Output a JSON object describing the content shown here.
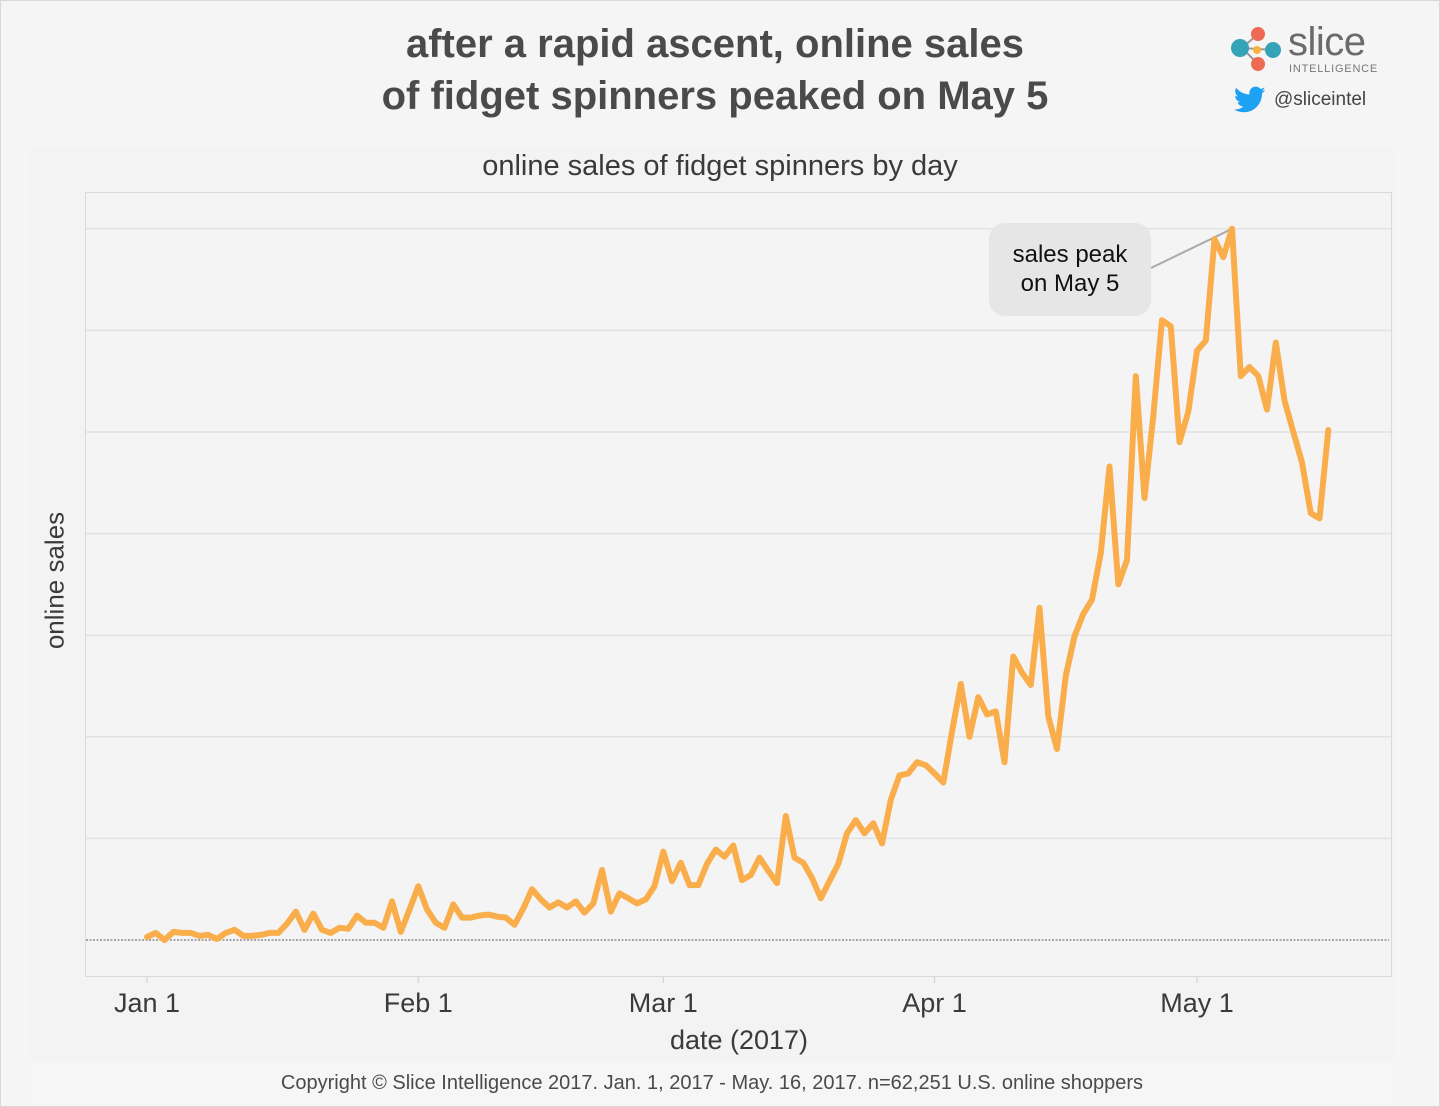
{
  "header": {
    "title_line1": "after a rapid ascent, online sales",
    "title_line2": "of fidget spinners peaked on May 5",
    "brand": {
      "name": "slice",
      "tagline": "INTELLIGENCE",
      "icon": "slice-logo-icon"
    },
    "social": {
      "icon": "twitter-bird-icon",
      "handle": "@sliceintel"
    }
  },
  "footer": {
    "copyright": "Copyright © Slice Intelligence 2017. Jan. 1, 2017 - May. 16, 2017. n=62,251 U.S. online shoppers"
  },
  "colors": {
    "line": "#f9ae4b",
    "grid": "#e2e2e2",
    "baseline": "#777777",
    "callout_bg": "#e6e6e6",
    "connector": "#a9a9a9"
  },
  "chart_data": {
    "type": "line",
    "title": "online sales of fidget spinners by day",
    "xlabel": "date (2017)",
    "ylabel": "online sales",
    "x_start": "2017-01-01",
    "x_end": "2017-05-16",
    "xticks": [
      {
        "label": "Jan 1",
        "day": 0
      },
      {
        "label": "Feb 1",
        "day": 31
      },
      {
        "label": "Mar 1",
        "day": 59
      },
      {
        "label": "Apr 1",
        "day": 90
      },
      {
        "label": "May 1",
        "day": 120
      }
    ],
    "y_units": "relative (gridline intervals, no labeled values)",
    "ylim": [
      -0.35,
      7.35
    ],
    "y_gridlines": [
      1,
      2,
      3,
      4,
      5,
      6,
      7
    ],
    "baseline_dotted_at": 0,
    "grid": true,
    "legend": "none",
    "annotation": {
      "text_line1": "sales peak",
      "text_line2": "on May 5",
      "target_day": 124
    },
    "series": [
      {
        "name": "online sales",
        "values": [
          0.03,
          0.07,
          0.0,
          0.08,
          0.07,
          0.07,
          0.04,
          0.05,
          0.01,
          0.07,
          0.1,
          0.04,
          0.04,
          0.05,
          0.07,
          0.07,
          0.16,
          0.28,
          0.1,
          0.26,
          0.1,
          0.07,
          0.12,
          0.11,
          0.24,
          0.17,
          0.17,
          0.12,
          0.38,
          0.08,
          0.3,
          0.53,
          0.3,
          0.17,
          0.12,
          0.35,
          0.22,
          0.22,
          0.24,
          0.25,
          0.23,
          0.22,
          0.15,
          0.31,
          0.5,
          0.4,
          0.32,
          0.37,
          0.32,
          0.38,
          0.27,
          0.36,
          0.69,
          0.28,
          0.46,
          0.41,
          0.36,
          0.4,
          0.53,
          0.87,
          0.58,
          0.76,
          0.54,
          0.54,
          0.75,
          0.89,
          0.82,
          0.93,
          0.59,
          0.64,
          0.81,
          0.68,
          0.56,
          1.22,
          0.81,
          0.76,
          0.61,
          0.41,
          0.58,
          0.75,
          1.05,
          1.18,
          1.05,
          1.15,
          0.95,
          1.38,
          1.62,
          1.64,
          1.75,
          1.72,
          1.64,
          1.55,
          2.05,
          2.52,
          2.0,
          2.39,
          2.22,
          2.25,
          1.75,
          2.79,
          2.63,
          2.51,
          3.27,
          2.2,
          1.88,
          2.6,
          2.99,
          3.21,
          3.35,
          3.81,
          4.66,
          3.5,
          3.74,
          5.55,
          4.35,
          5.16,
          6.1,
          6.04,
          4.9,
          5.2,
          5.8,
          5.9,
          6.9,
          6.72,
          7.0,
          5.55,
          5.64,
          5.55,
          5.22,
          5.88,
          5.31,
          5.0,
          4.7,
          4.2,
          4.15,
          5.02
        ]
      }
    ]
  }
}
